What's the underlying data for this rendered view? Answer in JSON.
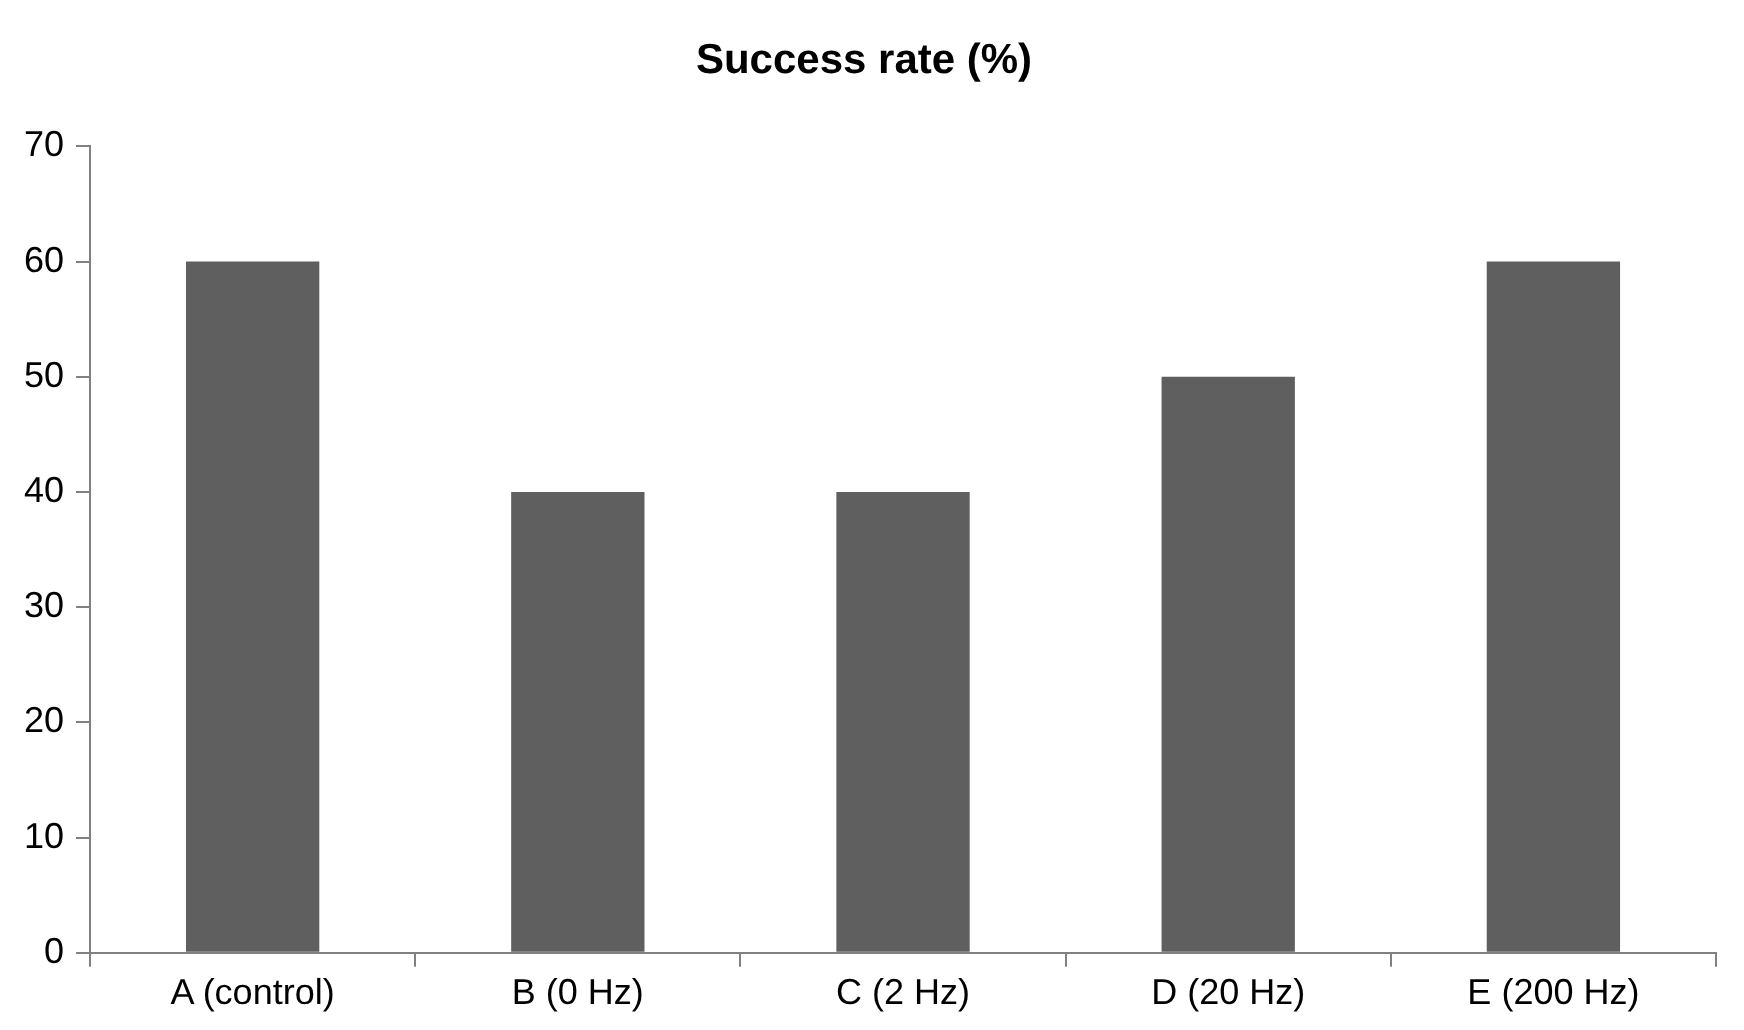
{
  "chart_data": {
    "type": "bar",
    "title": "Success rate (%)",
    "categories": [
      "A (control)",
      "B (0 Hz)",
      "C (2 Hz)",
      "D (20 Hz)",
      "E (200 Hz)"
    ],
    "values": [
      60,
      40,
      40,
      50,
      60
    ],
    "color": "#5f5f5f",
    "ylim": [
      0,
      70
    ],
    "yticks": [
      0,
      10,
      20,
      30,
      40,
      50,
      60,
      70
    ],
    "grid": false,
    "legend": false
  }
}
